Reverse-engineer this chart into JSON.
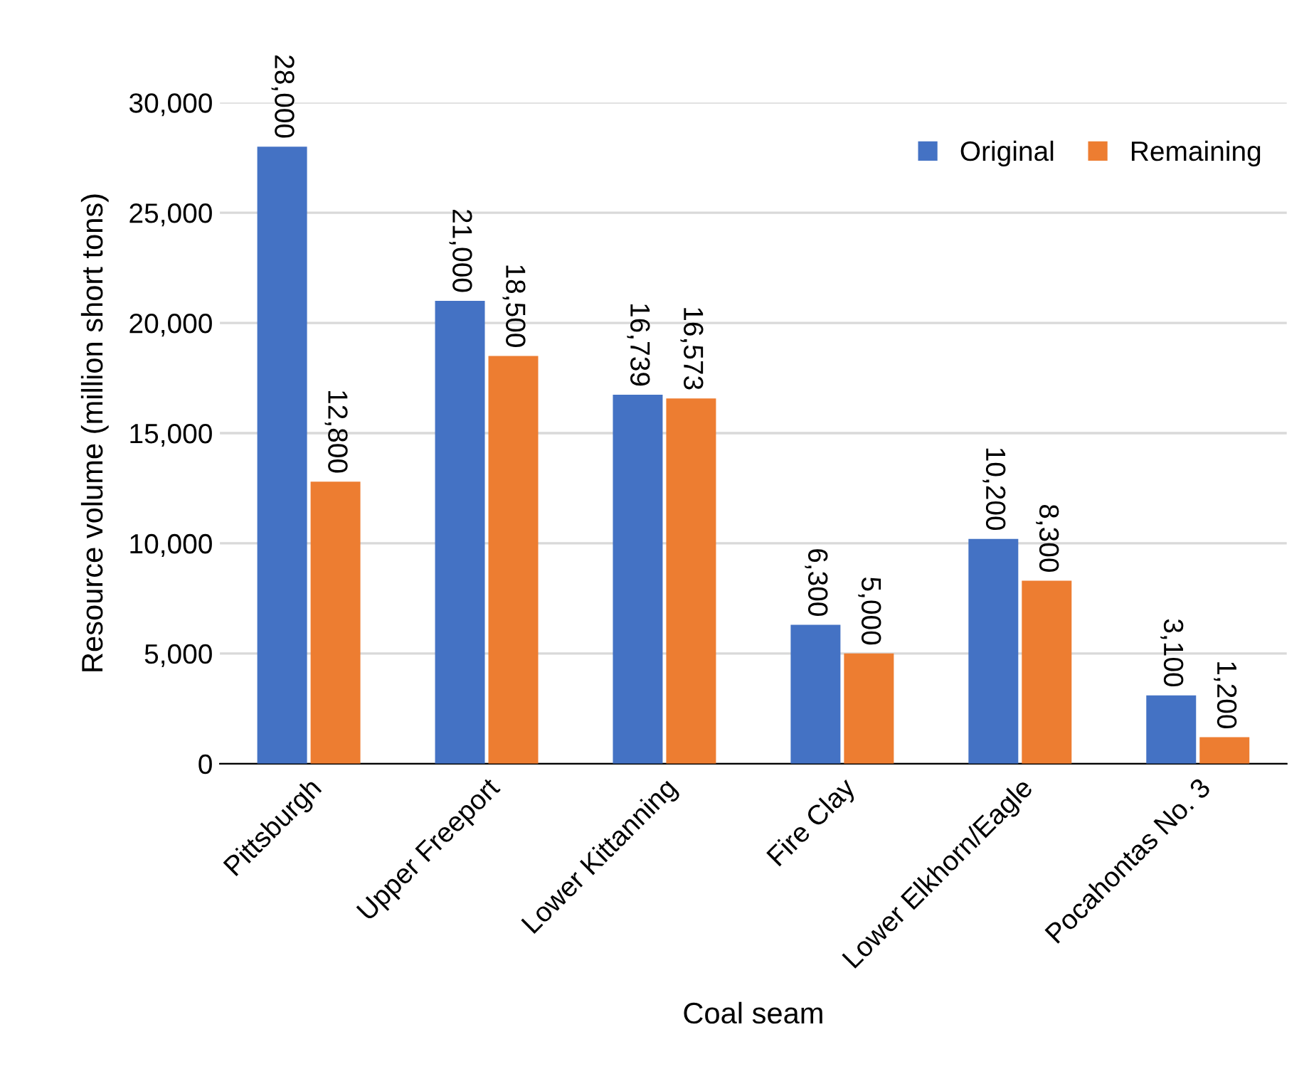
{
  "chart_data": {
    "type": "bar",
    "xlabel": "Coal seam",
    "ylabel": "Resource volume (million short tons)",
    "categories": [
      "Pittsburgh",
      "Upper Freeport",
      "Lower Kittanning",
      "Fire Clay",
      "Lower Elkhorn/Eagle",
      "Pocahontas No. 3"
    ],
    "series": [
      {
        "name": "Original",
        "color": "#4472c4",
        "values": [
          28000,
          21000,
          16739,
          6300,
          10200,
          3100
        ],
        "value_labels": [
          "28,000",
          "21,000",
          "16,739",
          "6,300",
          "10,200",
          "3,100"
        ]
      },
      {
        "name": "Remaining",
        "color": "#ed7d31",
        "values": [
          12800,
          18500,
          16573,
          5000,
          8300,
          1200
        ],
        "value_labels": [
          "12,800",
          "18,500",
          "16,573",
          "5,000",
          "8,300",
          "1,200"
        ]
      }
    ],
    "ylim": [
      0,
      30000
    ],
    "yticks": [
      {
        "value": 0,
        "label": "0"
      },
      {
        "value": 5000,
        "label": "5,000"
      },
      {
        "value": 10000,
        "label": "10,000"
      },
      {
        "value": 15000,
        "label": "15,000"
      },
      {
        "value": 20000,
        "label": "20,000"
      },
      {
        "value": 25000,
        "label": "25,000"
      },
      {
        "value": 30000,
        "label": "30,000"
      }
    ],
    "grid": "y",
    "legend": "top right"
  }
}
